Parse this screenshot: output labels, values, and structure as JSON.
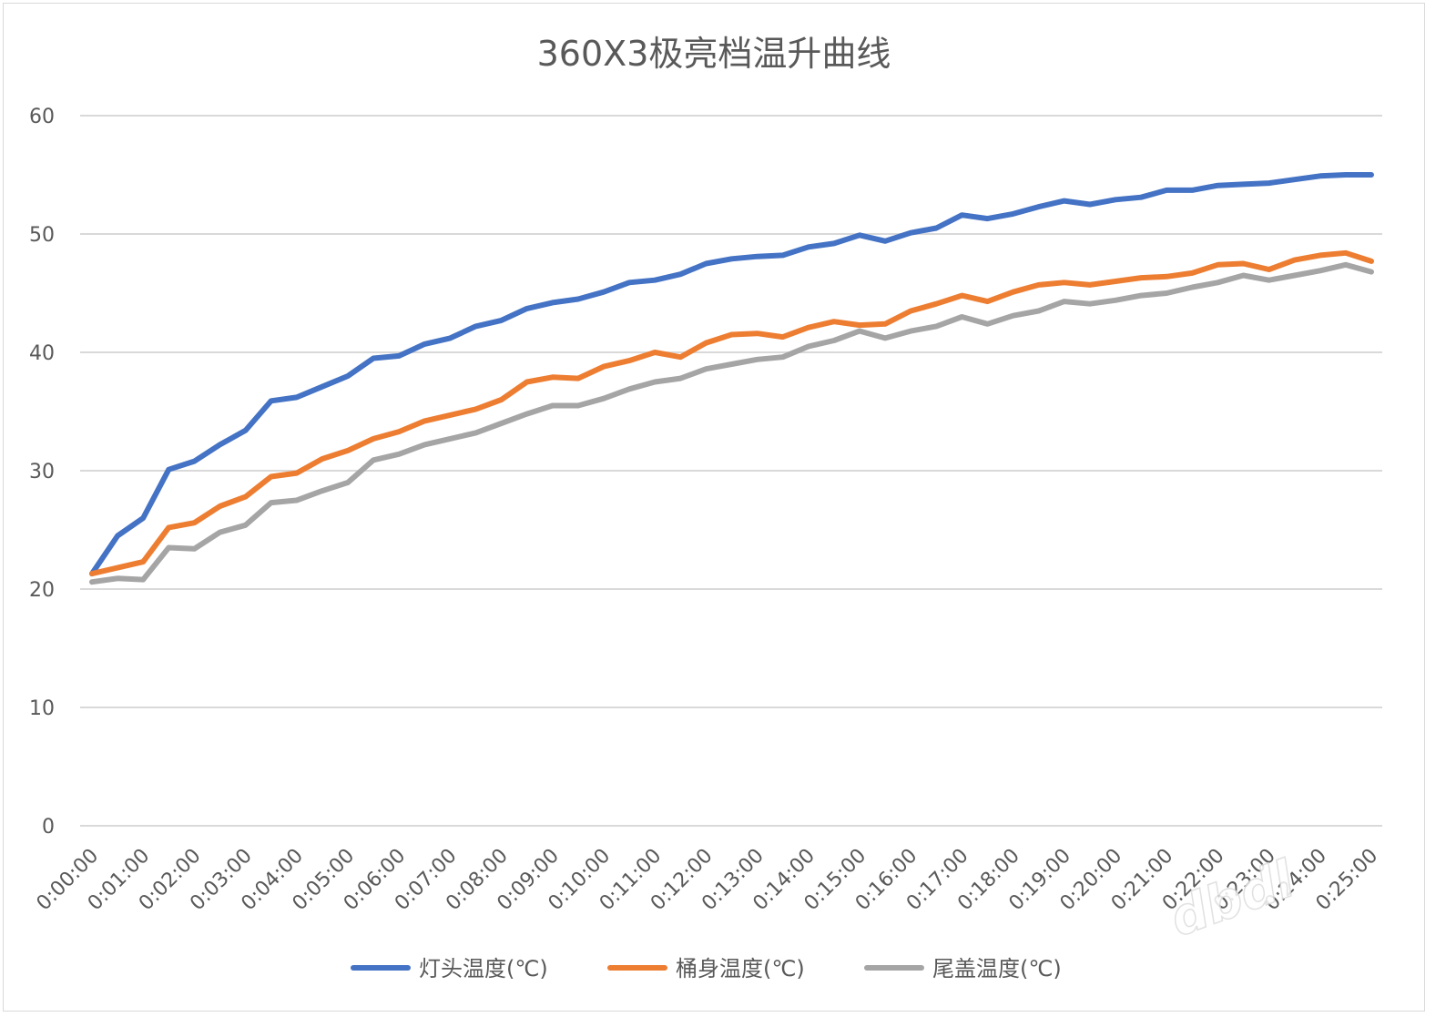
{
  "chart_data": {
    "type": "line",
    "title": "360X3极亮档温升曲线",
    "ylim": [
      0,
      60
    ],
    "yticks": [
      0,
      10,
      20,
      30,
      40,
      50,
      60
    ],
    "grid": true,
    "legend_position": "bottom",
    "x_tick_labels": [
      "0:00:00",
      "0:01:00",
      "0:02:00",
      "0:03:00",
      "0:04:00",
      "0:05:00",
      "0:06:00",
      "0:07:00",
      "0:08:00",
      "0:09:00",
      "0:10:00",
      "0:11:00",
      "0:12:00",
      "0:13:00",
      "0:14:00",
      "0:15:00",
      "0:16:00",
      "0:17:00",
      "0:18:00",
      "0:19:00",
      "0:20:00",
      "0:21:00",
      "0:22:00",
      "0:23:00",
      "0:24:00",
      "0:25:00"
    ],
    "x_minutes_step": 0.5,
    "series": [
      {
        "name": "灯头温度(℃)",
        "color": "#4472C4",
        "values": [
          21.3,
          24.5,
          26.0,
          30.1,
          30.8,
          32.2,
          33.4,
          35.9,
          36.2,
          37.1,
          38.0,
          39.5,
          39.7,
          40.7,
          41.2,
          42.2,
          42.7,
          43.7,
          44.2,
          44.5,
          45.1,
          45.9,
          46.1,
          46.6,
          47.5,
          47.9,
          48.1,
          48.2,
          48.9,
          49.2,
          49.9,
          49.4,
          50.1,
          50.5,
          51.6,
          51.3,
          51.7,
          52.3,
          52.8,
          52.5,
          52.9,
          53.1,
          53.7,
          53.7,
          54.1,
          54.2,
          54.3,
          54.6,
          54.9,
          55.0,
          55.0
        ]
      },
      {
        "name": "桶身温度(℃)",
        "color": "#ED7D31",
        "values": [
          21.3,
          21.8,
          22.3,
          25.2,
          25.6,
          27.0,
          27.8,
          29.5,
          29.8,
          31.0,
          31.7,
          32.7,
          33.3,
          34.2,
          34.7,
          35.2,
          36.0,
          37.5,
          37.9,
          37.8,
          38.8,
          39.3,
          40.0,
          39.6,
          40.8,
          41.5,
          41.6,
          41.3,
          42.1,
          42.6,
          42.3,
          42.4,
          43.5,
          44.1,
          44.8,
          44.3,
          45.1,
          45.7,
          45.9,
          45.7,
          46.0,
          46.3,
          46.4,
          46.7,
          47.4,
          47.5,
          47.0,
          47.8,
          48.2,
          48.4,
          47.7
        ]
      },
      {
        "name": "尾盖温度(℃)",
        "color": "#A5A5A5",
        "values": [
          20.6,
          20.9,
          20.8,
          23.5,
          23.4,
          24.8,
          25.4,
          27.3,
          27.5,
          28.3,
          29.0,
          30.9,
          31.4,
          32.2,
          32.7,
          33.2,
          34.0,
          34.8,
          35.5,
          35.5,
          36.1,
          36.9,
          37.5,
          37.8,
          38.6,
          39.0,
          39.4,
          39.6,
          40.5,
          41.0,
          41.8,
          41.2,
          41.8,
          42.2,
          43.0,
          42.4,
          43.1,
          43.5,
          44.3,
          44.1,
          44.4,
          44.8,
          45.0,
          45.5,
          45.9,
          46.5,
          46.1,
          46.5,
          46.9,
          47.4,
          46.8
        ]
      }
    ]
  }
}
